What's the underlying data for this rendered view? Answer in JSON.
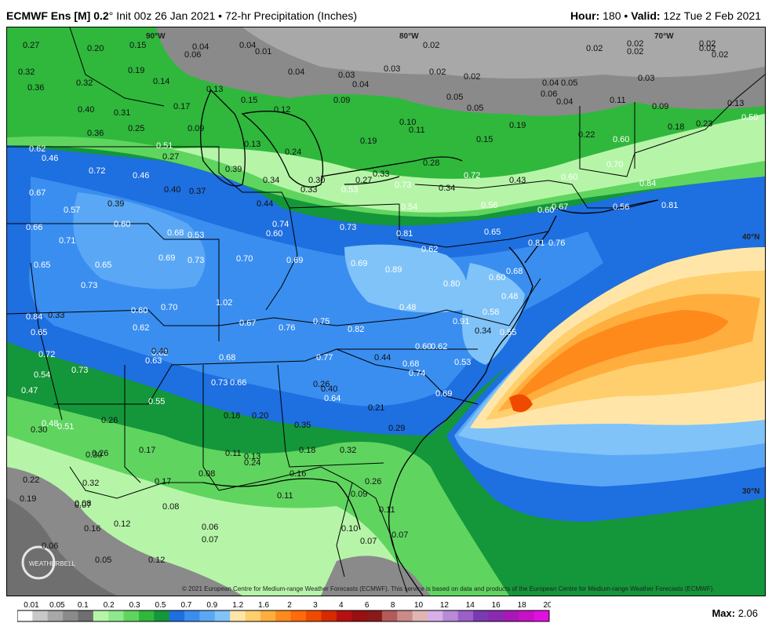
{
  "header": {
    "model": "ECMWF Ens [M]",
    "res": "0.2",
    "init": "Init 00z 26 Jan 2021",
    "product": "72-hr Precipitation (Inches)",
    "hour_label": "Hour:",
    "hour": "180",
    "valid_label": "Valid:",
    "valid": "12z Tue 2 Feb 2021"
  },
  "grid_labels": [
    "90°W",
    "80°W",
    "70°W",
    "40°N",
    "30°N"
  ],
  "logo_text": "WEATHERBELL",
  "copyright": "© 2021 European Centre for Medium-range Weather Forecasts (ECMWF). This service is based on data and products of the European Centre for Medium-range Weather Forecasts (ECMWF).",
  "legend": {
    "ticks": [
      "0.01",
      "0.05",
      "0.1",
      "0.2",
      "0.3",
      "0.5",
      "0.7",
      "0.9",
      "1.2",
      "1.6",
      "2",
      "3",
      "4",
      "6",
      "8",
      "10",
      "12",
      "14",
      "16",
      "18",
      "20"
    ],
    "colors": [
      "#ffffff",
      "#c8c8c8",
      "#a8a8a8",
      "#8a8a8a",
      "#6f6f6f",
      "#b6f5a8",
      "#8fe88c",
      "#5fd55f",
      "#2fb83c",
      "#14963a",
      "#1e6fe0",
      "#3a8ef0",
      "#5aa8f5",
      "#80c3f8",
      "#ffe6a8",
      "#ffcf6e",
      "#ffae3e",
      "#ff8a1c",
      "#ff6a0a",
      "#f04a00",
      "#d82a00",
      "#b81010",
      "#981010",
      "#8a1a1a",
      "#b45a5a",
      "#cc8a8a",
      "#e2b4b4",
      "#d8b0e8",
      "#b88ad8",
      "#9a60c8",
      "#7a3ab0",
      "#8a2ab0",
      "#a818b8",
      "#c810c8",
      "#e010e0"
    ],
    "max_label": "Max:",
    "max": "2.06"
  },
  "values": [
    {
      "t": "0.27"
    },
    {
      "t": "0.20"
    },
    {
      "t": "0.15"
    },
    {
      "t": "0.06"
    },
    {
      "t": "0.04"
    },
    {
      "t": "0.04"
    },
    {
      "t": "0.01"
    },
    {
      "t": "0.02"
    },
    {
      "t": "0.02"
    },
    {
      "t": "0.02"
    },
    {
      "t": "0.02"
    },
    {
      "t": "0.02"
    },
    {
      "t": "0.02"
    },
    {
      "t": "0.02"
    },
    {
      "t": "0.32"
    },
    {
      "t": "0.36"
    },
    {
      "t": "0.19"
    },
    {
      "t": "0.14"
    },
    {
      "t": "0.32"
    },
    {
      "t": "0.04"
    },
    {
      "t": "0.03"
    },
    {
      "t": "0.03"
    },
    {
      "t": "0.02"
    },
    {
      "t": "0.02"
    },
    {
      "t": "0.04"
    },
    {
      "t": "0.05"
    },
    {
      "t": "0.03"
    },
    {
      "t": "0.40"
    },
    {
      "t": "0.31"
    },
    {
      "t": "0.17"
    },
    {
      "t": "0.13"
    },
    {
      "t": "0.15"
    },
    {
      "t": "0.12"
    },
    {
      "t": "0.09"
    },
    {
      "t": "0.04"
    },
    {
      "t": "0.05"
    },
    {
      "t": "0.05"
    },
    {
      "t": "0.06"
    },
    {
      "t": "0.04"
    },
    {
      "t": "0.11"
    },
    {
      "t": "0.09"
    },
    {
      "t": "0.13"
    },
    {
      "t": "0.50"
    },
    {
      "t": "0.36"
    },
    {
      "t": "0.25"
    },
    {
      "t": "0.09"
    },
    {
      "t": "0.10"
    },
    {
      "t": "0.11"
    },
    {
      "t": "0.19"
    },
    {
      "t": "0.18"
    },
    {
      "t": "0.23"
    },
    {
      "t": "0.13"
    },
    {
      "t": "0.19"
    },
    {
      "t": "0.15"
    },
    {
      "t": "0.22"
    },
    {
      "t": "0.60"
    },
    {
      "t": "0.62"
    },
    {
      "t": "0.46"
    },
    {
      "t": "0.51"
    },
    {
      "t": "0.27"
    },
    {
      "t": "0.24"
    },
    {
      "t": "0.28"
    },
    {
      "t": "0.72"
    },
    {
      "t": "0.72"
    },
    {
      "t": "0.46"
    },
    {
      "t": "0.39"
    },
    {
      "t": "0.34"
    },
    {
      "t": "0.30"
    },
    {
      "t": "0.27"
    },
    {
      "t": "0.33"
    },
    {
      "t": "0.34"
    },
    {
      "t": "0.43"
    },
    {
      "t": "0.60"
    },
    {
      "t": "0.70"
    },
    {
      "t": "0.67"
    },
    {
      "t": "0.40"
    },
    {
      "t": "0.37"
    },
    {
      "t": "0.33"
    },
    {
      "t": "0.53"
    },
    {
      "t": "0.73"
    },
    {
      "t": "0.84"
    },
    {
      "t": "0.57"
    },
    {
      "t": "0.39"
    },
    {
      "t": "0.44"
    },
    {
      "t": "0.54"
    },
    {
      "t": "0.56"
    },
    {
      "t": "0.60"
    },
    {
      "t": "0.67"
    },
    {
      "t": "0.56"
    },
    {
      "t": "0.81"
    },
    {
      "t": "0.66"
    },
    {
      "t": "0.60"
    },
    {
      "t": "0.74"
    },
    {
      "t": "0.73"
    },
    {
      "t": "0.71"
    },
    {
      "t": "0.68"
    },
    {
      "t": "0.53"
    },
    {
      "t": "0.60"
    },
    {
      "t": "0.81"
    },
    {
      "t": "0.65"
    },
    {
      "t": "0.76"
    },
    {
      "t": "0.65"
    },
    {
      "t": "0.65"
    },
    {
      "t": "0.69"
    },
    {
      "t": "0.73"
    },
    {
      "t": "0.70"
    },
    {
      "t": "0.69"
    },
    {
      "t": "0.69"
    },
    {
      "t": "0.62"
    },
    {
      "t": "0.81"
    },
    {
      "t": "0.73"
    },
    {
      "t": "0.89"
    },
    {
      "t": "0.80"
    },
    {
      "t": "0.60"
    },
    {
      "t": "0.68"
    },
    {
      "t": "0.60"
    },
    {
      "t": "0.70"
    },
    {
      "t": "1.02"
    },
    {
      "t": "0.48"
    },
    {
      "t": "0.48"
    },
    {
      "t": "0.84"
    },
    {
      "t": "0.33"
    },
    {
      "t": "0.58"
    },
    {
      "t": "0.65"
    },
    {
      "t": "0.62"
    },
    {
      "t": "0.62"
    },
    {
      "t": "0.67"
    },
    {
      "t": "0.76"
    },
    {
      "t": "0.75"
    },
    {
      "t": "0.82"
    },
    {
      "t": "0.91"
    },
    {
      "t": "0.34"
    },
    {
      "t": "0.55"
    },
    {
      "t": "0.72"
    },
    {
      "t": "0.40"
    },
    {
      "t": "0.60"
    },
    {
      "t": "0.62"
    },
    {
      "t": "0.73"
    },
    {
      "t": "0.63"
    },
    {
      "t": "0.68"
    },
    {
      "t": "0.77"
    },
    {
      "t": "0.44"
    },
    {
      "t": "0.68"
    },
    {
      "t": "0.53"
    },
    {
      "t": "0.54"
    },
    {
      "t": "0.74"
    },
    {
      "t": "0.73"
    },
    {
      "t": "0.66"
    },
    {
      "t": "0.26"
    },
    {
      "t": "0.40"
    },
    {
      "t": "0.69"
    },
    {
      "t": "0.47"
    },
    {
      "t": "0.55"
    },
    {
      "t": "0.64"
    },
    {
      "t": "0.18"
    },
    {
      "t": "0.20"
    },
    {
      "t": "0.21"
    },
    {
      "t": "0.30"
    },
    {
      "t": "0.48"
    },
    {
      "t": "0.51"
    },
    {
      "t": "0.26"
    },
    {
      "t": "0.35"
    },
    {
      "t": "0.29"
    },
    {
      "t": "0.17"
    },
    {
      "t": "0.18"
    },
    {
      "t": "0.32"
    },
    {
      "t": "0.30"
    },
    {
      "t": "0.26"
    },
    {
      "t": "0.11"
    },
    {
      "t": "0.13"
    },
    {
      "t": "0.24"
    },
    {
      "t": "0.22"
    },
    {
      "t": "0.32"
    },
    {
      "t": "0.17"
    },
    {
      "t": "0.08"
    },
    {
      "t": "0.16"
    },
    {
      "t": "0.26"
    },
    {
      "t": "0.19"
    },
    {
      "t": "0.08"
    },
    {
      "t": "0.11"
    },
    {
      "t": "0.09"
    },
    {
      "t": "0.07"
    },
    {
      "t": "0.08"
    },
    {
      "t": "0.11"
    },
    {
      "t": "0.16"
    },
    {
      "t": "0.12"
    },
    {
      "t": "0.06"
    },
    {
      "t": "0.10"
    },
    {
      "t": "0.07"
    },
    {
      "t": "0.07"
    },
    {
      "t": "0.07"
    },
    {
      "t": "0.06"
    },
    {
      "t": "0.05"
    },
    {
      "t": "0.12"
    }
  ]
}
